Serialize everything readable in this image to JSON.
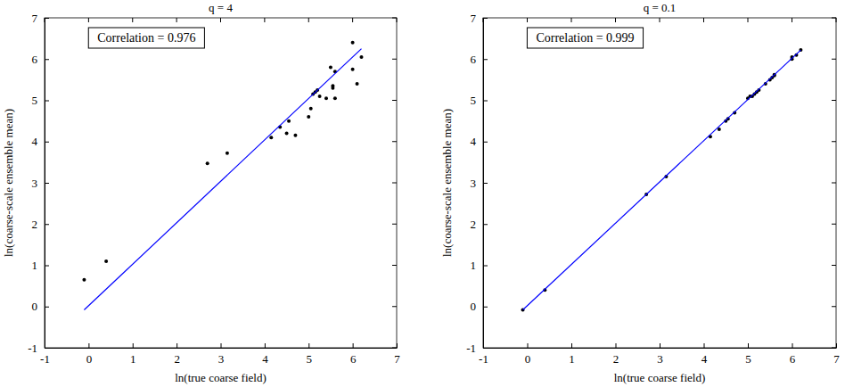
{
  "chart_data": [
    {
      "type": "scatter",
      "title": "q = 4",
      "x_label": "ln(true coarse field)",
      "y_label": "ln(coarse-scale ensemble mean)",
      "annotation": "Correlation = 0.976",
      "xlim": [
        -1,
        7
      ],
      "ylim": [
        -1,
        7
      ],
      "xticks": [
        -1,
        0,
        1,
        2,
        3,
        4,
        5,
        6,
        7
      ],
      "yticks": [
        -1,
        0,
        1,
        2,
        3,
        4,
        5,
        6,
        7
      ],
      "series": [
        {
          "type": "scatter",
          "color": "#000000",
          "marker": "dot",
          "x": [
            -0.1,
            0.4,
            2.7,
            3.15,
            4.15,
            4.35,
            4.5,
            4.55,
            4.7,
            5.0,
            5.05,
            5.1,
            5.15,
            5.2,
            5.25,
            5.4,
            5.5,
            5.55,
            5.55,
            5.6,
            5.6,
            6.0,
            6.0,
            6.1,
            6.2
          ],
          "values": [
            0.65,
            1.1,
            3.47,
            3.72,
            4.1,
            4.35,
            4.2,
            4.5,
            4.15,
            4.6,
            4.8,
            5.15,
            5.2,
            5.25,
            5.1,
            5.05,
            5.8,
            5.35,
            5.3,
            5.7,
            5.05,
            5.75,
            6.4,
            5.4,
            6.05
          ]
        },
        {
          "type": "line",
          "color": "#0000ff",
          "line_style": "solid",
          "x": [
            -0.1,
            6.2
          ],
          "values": [
            -0.08,
            6.25
          ]
        }
      ]
    },
    {
      "type": "scatter",
      "title": "q = 0.1",
      "x_label": "ln(true coarse field)",
      "y_label": "ln(coarse-scale ensemble mean)",
      "annotation": "Correlation = 0.999",
      "xlim": [
        -1,
        7
      ],
      "ylim": [
        -1,
        7
      ],
      "xticks": [
        -1,
        0,
        1,
        2,
        3,
        4,
        5,
        6,
        7
      ],
      "yticks": [
        -1,
        0,
        1,
        2,
        3,
        4,
        5,
        6,
        7
      ],
      "series": [
        {
          "type": "scatter",
          "color": "#000000",
          "marker": "dot",
          "x": [
            -0.1,
            0.4,
            2.7,
            3.15,
            4.15,
            4.35,
            4.5,
            4.55,
            4.7,
            5.0,
            5.05,
            5.1,
            5.15,
            5.2,
            5.25,
            5.4,
            5.5,
            5.55,
            5.6,
            5.6,
            6.0,
            6.0,
            6.1,
            6.2
          ],
          "values": [
            -0.08,
            0.4,
            2.72,
            3.15,
            4.12,
            4.3,
            4.5,
            4.55,
            4.7,
            5.05,
            5.1,
            5.1,
            5.15,
            5.2,
            5.25,
            5.4,
            5.5,
            5.55,
            5.6,
            5.62,
            6.0,
            6.05,
            6.1,
            6.22
          ]
        },
        {
          "type": "line",
          "color": "#0000ff",
          "line_style": "solid",
          "x": [
            -0.1,
            6.2
          ],
          "values": [
            -0.08,
            6.22
          ]
        }
      ]
    }
  ]
}
